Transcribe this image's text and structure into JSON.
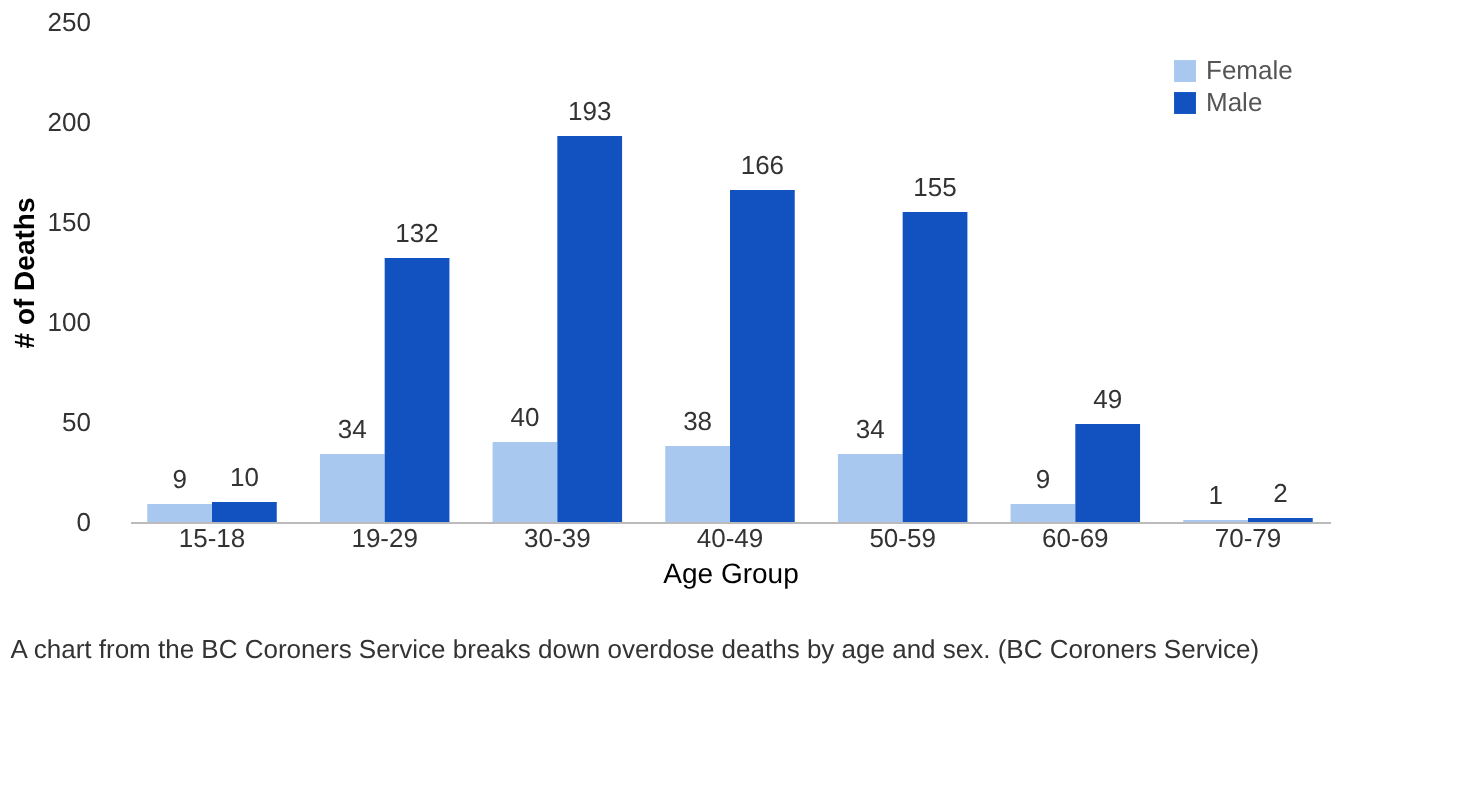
{
  "chart_data": {
    "type": "bar",
    "xlabel": "Age Group",
    "ylabel": "# of Deaths",
    "categories": [
      "15-18",
      "19-29",
      "30-39",
      "40-49",
      "50-59",
      "60-69",
      "70-79"
    ],
    "series": [
      {
        "name": "Female",
        "color": "#a9c8f0",
        "values": [
          9,
          34,
          40,
          38,
          34,
          9,
          1
        ]
      },
      {
        "name": "Male",
        "color": "#1152c0",
        "values": [
          10,
          132,
          193,
          166,
          155,
          49,
          2
        ]
      }
    ],
    "ylim": [
      0,
      250
    ],
    "yticks": [
      0,
      50,
      100,
      150,
      200,
      250
    ],
    "grid": false,
    "legend": "top right",
    "data_labels": true,
    "annotations": [
      "A chart from the BC Coroners Service breaks down overdose deaths by age and sex. (BC Coroners Service)"
    ]
  }
}
